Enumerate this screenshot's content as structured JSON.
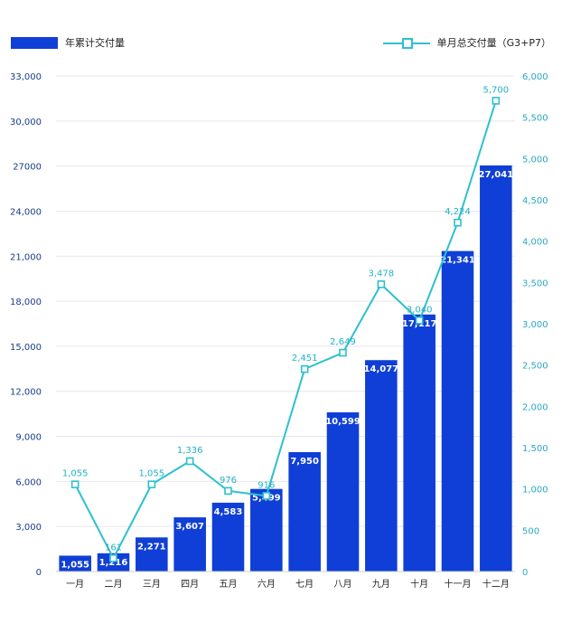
{
  "legend": {
    "bar_name": "年累计交付量",
    "line_name": "单月总交付量（G3+P7）"
  },
  "colors": {
    "bar": "#0f3fd6",
    "line": "#2ec0cf",
    "grid": "#e6e8ee"
  },
  "chart_data": {
    "type": "bar",
    "categories": [
      "一月",
      "二月",
      "三月",
      "四月",
      "五月",
      "六月",
      "七月",
      "八月",
      "九月",
      "十月",
      "十一月",
      "十二月"
    ],
    "series": [
      {
        "name": "年累计交付量",
        "type": "bar",
        "axis": "left",
        "values": [
          1055,
          1216,
          2271,
          3607,
          4583,
          5499,
          7950,
          10599,
          14077,
          17117,
          21341,
          27041
        ],
        "labels": [
          "1,055",
          "1,216",
          "2,271",
          "3,607",
          "4,583",
          "5,499",
          "7,950",
          "10,599",
          "14,077",
          "17,117",
          "21,341",
          "27,041"
        ]
      },
      {
        "name": "单月总交付量（G3+P7）",
        "type": "line",
        "axis": "right",
        "values": [
          1055,
          161,
          1055,
          1336,
          976,
          916,
          2451,
          2649,
          3478,
          3040,
          4224,
          5700
        ],
        "labels": [
          "1,055",
          "161",
          "1,055",
          "1,336",
          "976",
          "916",
          "2,451",
          "2,649",
          "3,478",
          "3,040",
          "4,224",
          "5,700"
        ]
      }
    ],
    "y_left": {
      "lim": [
        0,
        33000
      ],
      "ticks": [
        0,
        3000,
        6000,
        9000,
        12000,
        15000,
        18000,
        21000,
        24000,
        27000,
        30000,
        33000
      ],
      "tick_labels": [
        "0",
        "3,000",
        "6,000",
        "9,000",
        "12,000",
        "15,000",
        "18,000",
        "21,000",
        "24,000",
        "27000",
        "30,000",
        "33,000"
      ]
    },
    "y_right": {
      "lim": [
        0,
        6000
      ],
      "ticks": [
        0,
        500,
        1000,
        1500,
        2000,
        2500,
        3000,
        3500,
        4000,
        4500,
        5000,
        5500,
        6000
      ],
      "tick_labels": [
        "0",
        "500",
        "1,000",
        "1,500",
        "2,000",
        "2,500",
        "3,000",
        "3,500",
        "4,000",
        "4,500",
        "5,000",
        "5,500",
        "6,000"
      ]
    },
    "grid": true,
    "legend_position": "top"
  }
}
